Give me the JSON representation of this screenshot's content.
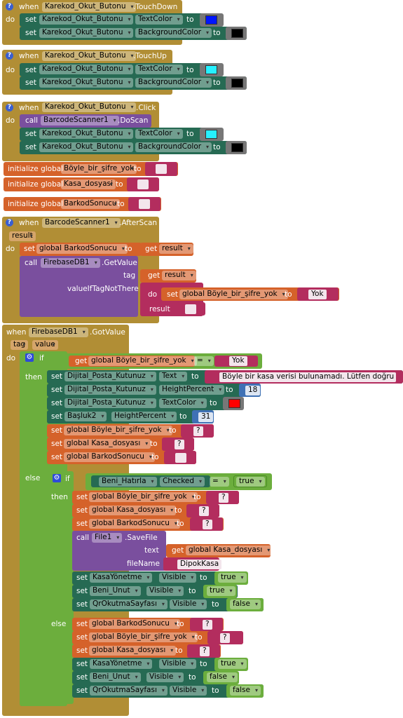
{
  "colors": {
    "event": "#b18e35",
    "set_green": "#266a53",
    "set_orange": "#d5622a",
    "string": "#b32d5e",
    "call_purple": "#7a4f9e",
    "logic_green": "#6cae3d",
    "math_blue": "#3f71b5",
    "blue_swatch": "#0016ff",
    "cyan_swatch": "#26f0ff",
    "black_swatch": "#000000",
    "red_swatch": "#ff0000"
  },
  "kw": {
    "when": "when",
    "do": "do",
    "set": "set",
    "to": "to",
    "call": "call",
    "get": "get",
    "if": "if",
    "then": "then",
    "else": "else",
    "init": "initialize global",
    "result": "result",
    "tag": "tag",
    "value": "value",
    "valueIfTagNotThere": "valueIfTagNotThere",
    "text": "text",
    "fileName": "fileName",
    "eq": "="
  },
  "b1": {
    "component": "Karekod_Okut_Butonu",
    "event": ".TouchDown",
    "prop1": "TextColor",
    "prop2": "BackgroundColor"
  },
  "b2": {
    "component": "Karekod_Okut_Butonu",
    "event": ".TouchUp",
    "prop1": "TextColor",
    "prop2": "BackgroundColor"
  },
  "b3": {
    "component": "Karekod_Okut_Butonu",
    "event": ".Click",
    "scanner": "BarcodeScanner1",
    "method": ".DoScan",
    "prop1": "TextColor",
    "prop2": "BackgroundColor"
  },
  "globals": [
    {
      "name": "Böyle_bir_şifre_yok"
    },
    {
      "name": "Kasa_dosyasi"
    },
    {
      "name": "BarkodSonucu"
    }
  ],
  "b4": {
    "component": "BarcodeScanner1",
    "event": ".AfterScan",
    "set_var": "global BarkodSonucu",
    "db": "FirebaseDB1",
    "method": ".GetValue",
    "set_var2": "global Böyle_bir_şifre_yok",
    "yok": "Yok"
  },
  "b5": {
    "component": "FirebaseDB1",
    "event": ".GotValue",
    "cond_var": "global Böyle_bir_şifre_yok",
    "cond_str": "Yok",
    "then": [
      {
        "comp": "Dijital_Posta_Kutunuz",
        "prop": "Text",
        "str": "Böyle bir kasa verisi bulunamadı. Lütfen doğru k..."
      },
      {
        "comp": "Dijital_Posta_Kutunuz",
        "prop": "HeightPercent",
        "num": "18"
      },
      {
        "comp": "Dijital_Posta_Kutunuz",
        "prop": "TextColor"
      },
      {
        "comp": "Başluk2",
        "prop": "HeightPercent",
        "num": "31"
      }
    ],
    "then_vars": [
      "global Böyle_bir_şifre_yok",
      "global Kasa_dosyası",
      "global BarkodSonucu"
    ],
    "q": "?",
    "inner_cond_comp": "Beni_Hatırla",
    "inner_cond_prop": "Checked",
    "true": "true",
    "false": "false",
    "inner_then_vars": [
      "global Böyle_bir_şifre_yok",
      "global Kasa_dosyası",
      "global BarkodSonucu"
    ],
    "file": "File1",
    "savefile": ".SaveFile",
    "get_kasa": "global Kasa_dosyası",
    "filename_str": "DipokKasa",
    "vis1": {
      "comp": "KasaYönetme",
      "prop": "Visible"
    },
    "vis2": {
      "comp": "Beni_Unut",
      "prop": "Visible"
    },
    "vis3": {
      "comp": "QrOkutmaSayfası",
      "prop": "Visible"
    },
    "inner_else_vars": [
      "global BarkodSonucu",
      "global Böyle_bir_şifre_yok",
      "global Kasa_dosyası"
    ]
  }
}
